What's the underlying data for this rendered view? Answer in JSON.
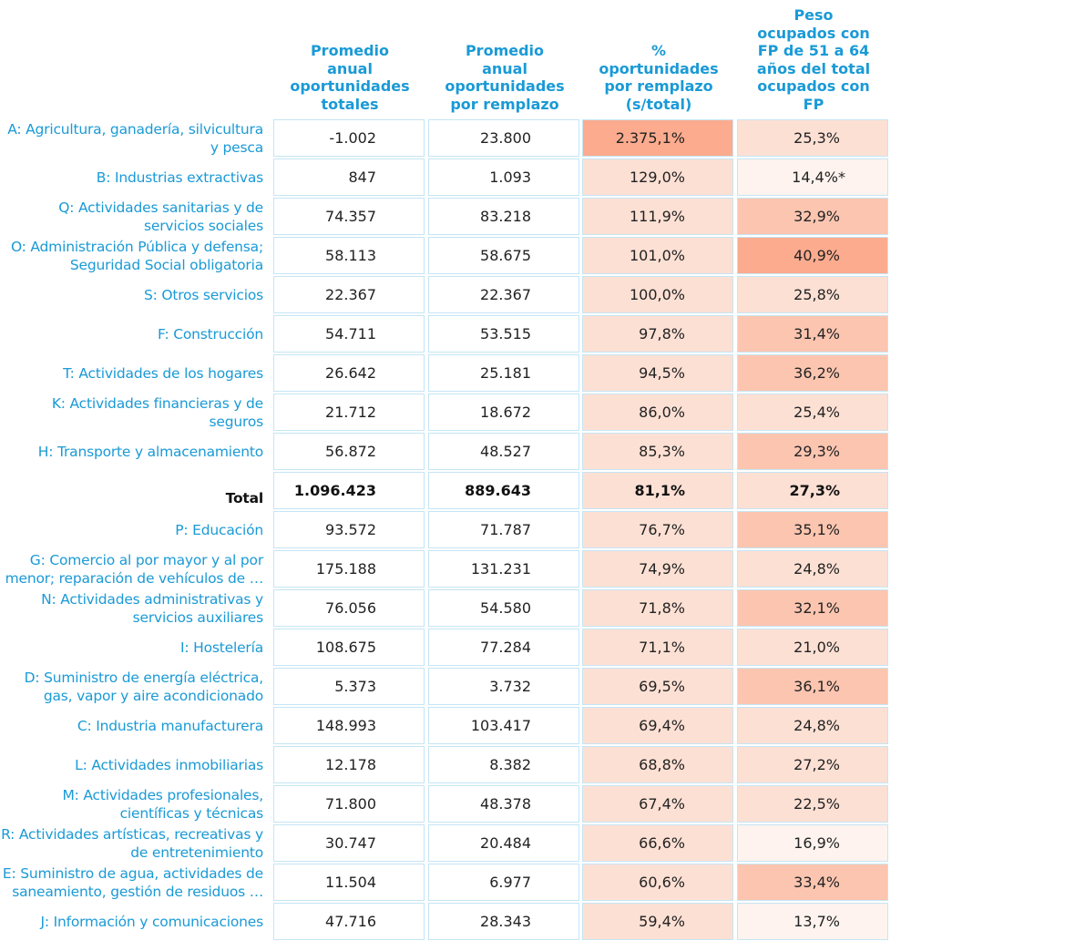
{
  "chart_data": {
    "type": "table",
    "headers": [
      "Promedio anual oportunidades totales",
      "Promedio anual oportunidades por remplazo",
      "% oportunidades por remplazo (s/total)",
      "Peso ocupados con FP de 51 a 64 años del total ocupados con FP"
    ],
    "header_lines": [
      [
        "Promedio",
        "anual",
        "oportunidades",
        "totales"
      ],
      [
        "Promedio",
        "anual",
        "oportunidades",
        "por remplazo"
      ],
      [
        "%",
        "oportunidades",
        "por remplazo",
        "(s/total)"
      ],
      [
        "Peso",
        "ocupados con",
        "FP de 51 a 64",
        "años del total",
        "ocupados con",
        "FP"
      ]
    ],
    "rows": [
      {
        "label": [
          "A: Agricultura, ganadería, silvicultura",
          "y pesca"
        ],
        "values": [
          "-1.002",
          "23.800",
          "2.375,1%",
          "25,3%"
        ],
        "pct": [
          2375.1,
          25.3
        ]
      },
      {
        "label": [
          "B: Industrias extractivas"
        ],
        "values": [
          "847",
          "1.093",
          "129,0%",
          "14,4%*"
        ],
        "pct": [
          129.0,
          14.4
        ]
      },
      {
        "label": [
          "Q: Actividades sanitarias y de",
          "servicios sociales"
        ],
        "values": [
          "74.357",
          "83.218",
          "111,9%",
          "32,9%"
        ],
        "pct": [
          111.9,
          32.9
        ]
      },
      {
        "label": [
          "O: Administración Pública y defensa;",
          "Seguridad Social obligatoria"
        ],
        "values": [
          "58.113",
          "58.675",
          "101,0%",
          "40,9%"
        ],
        "pct": [
          101.0,
          40.9
        ]
      },
      {
        "label": [
          "S: Otros servicios"
        ],
        "values": [
          "22.367",
          "22.367",
          "100,0%",
          "25,8%"
        ],
        "pct": [
          100.0,
          25.8
        ]
      },
      {
        "label": [
          "F: Construcción"
        ],
        "values": [
          "54.711",
          "53.515",
          "97,8%",
          "31,4%"
        ],
        "pct": [
          97.8,
          31.4
        ]
      },
      {
        "label": [
          "T: Actividades de los hogares"
        ],
        "values": [
          "26.642",
          "25.181",
          "94,5%",
          "36,2%"
        ],
        "pct": [
          94.5,
          36.2
        ]
      },
      {
        "label": [
          "K: Actividades financieras y de",
          "seguros"
        ],
        "values": [
          "21.712",
          "18.672",
          "86,0%",
          "25,4%"
        ],
        "pct": [
          86.0,
          25.4
        ]
      },
      {
        "label": [
          "H: Transporte y almacenamiento"
        ],
        "values": [
          "56.872",
          "48.527",
          "85,3%",
          "29,3%"
        ],
        "pct": [
          85.3,
          29.3
        ]
      },
      {
        "label": [
          "Total"
        ],
        "values": [
          "1.096.423",
          "889.643",
          "81,1%",
          "27,3%"
        ],
        "pct": [
          81.1,
          27.3
        ],
        "total": true
      },
      {
        "label": [
          "P: Educación"
        ],
        "values": [
          "93.572",
          "71.787",
          "76,7%",
          "35,1%"
        ],
        "pct": [
          76.7,
          35.1
        ]
      },
      {
        "label": [
          "G: Comercio al por mayor y al por",
          "menor; reparación de vehículos de …"
        ],
        "values": [
          "175.188",
          "131.231",
          "74,9%",
          "24,8%"
        ],
        "pct": [
          74.9,
          24.8
        ]
      },
      {
        "label": [
          "N: Actividades administrativas y",
          "servicios auxiliares"
        ],
        "values": [
          "76.056",
          "54.580",
          "71,8%",
          "32,1%"
        ],
        "pct": [
          71.8,
          32.1
        ]
      },
      {
        "label": [
          "I: Hostelería"
        ],
        "values": [
          "108.675",
          "77.284",
          "71,1%",
          "21,0%"
        ],
        "pct": [
          71.1,
          21.0
        ]
      },
      {
        "label": [
          "D: Suministro de energía eléctrica,",
          "gas, vapor y aire acondicionado"
        ],
        "values": [
          "5.373",
          "3.732",
          "69,5%",
          "36,1%"
        ],
        "pct": [
          69.5,
          36.1
        ]
      },
      {
        "label": [
          "C: Industria manufacturera"
        ],
        "values": [
          "148.993",
          "103.417",
          "69,4%",
          "24,8%"
        ],
        "pct": [
          69.4,
          24.8
        ]
      },
      {
        "label": [
          "L: Actividades inmobiliarias"
        ],
        "values": [
          "12.178",
          "8.382",
          "68,8%",
          "27,2%"
        ],
        "pct": [
          68.8,
          27.2
        ]
      },
      {
        "label": [
          "M: Actividades profesionales,",
          "científicas y técnicas"
        ],
        "values": [
          "71.800",
          "48.378",
          "67,4%",
          "22,5%"
        ],
        "pct": [
          67.4,
          22.5
        ]
      },
      {
        "label": [
          "R: Actividades artísticas, recreativas y",
          "de entretenimiento"
        ],
        "values": [
          "30.747",
          "20.484",
          "66,6%",
          "16,9%"
        ],
        "pct": [
          66.6,
          16.9
        ]
      },
      {
        "label": [
          "E: Suministro de agua, actividades de",
          "saneamiento, gestión de residuos …"
        ],
        "values": [
          "11.504",
          "6.977",
          "60,6%",
          "33,4%"
        ],
        "pct": [
          60.6,
          33.4
        ]
      },
      {
        "label": [
          "J: Información y comunicaciones"
        ],
        "values": [
          "47.716",
          "28.343",
          "59,4%",
          "13,7%"
        ],
        "pct": [
          59.4,
          13.7
        ]
      }
    ],
    "colors": {
      "header": "#1a9ad6",
      "border": "#c5e5f5",
      "very_light": "#fef3ee",
      "light": "#fde0d4",
      "medium": "#fcc5b0",
      "dark": "#fcab8e"
    }
  }
}
